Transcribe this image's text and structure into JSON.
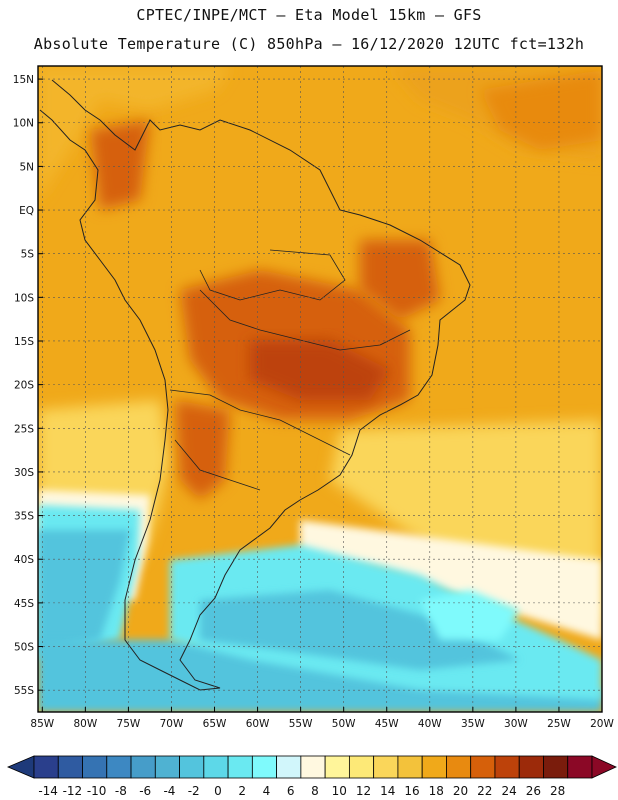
{
  "header": {
    "line1": "CPTEC/INPE/MCT –  Eta Model 15km – GFS",
    "line2": "Absolute Temperature (C) 850hPa – 16/12/2020 12UTC fct=132h"
  },
  "map": {
    "lat_labels": [
      "15N",
      "10N",
      "5N",
      "EQ",
      "5S",
      "10S",
      "15S",
      "20S",
      "25S",
      "30S",
      "35S",
      "40S",
      "45S",
      "50S",
      "55S"
    ],
    "lon_labels": [
      "85W",
      "80W",
      "75W",
      "70W",
      "65W",
      "60W",
      "55W",
      "50W",
      "45W",
      "40W",
      "35W",
      "30W",
      "25W",
      "20W"
    ],
    "lat_values": [
      15,
      10,
      5,
      0,
      -5,
      -10,
      -15,
      -20,
      -25,
      -30,
      -35,
      -40,
      -45,
      -50,
      -55
    ],
    "lon_values": [
      -85,
      -80,
      -75,
      -70,
      -65,
      -60,
      -55,
      -50,
      -45,
      -40,
      -35,
      -30,
      -25,
      -20
    ],
    "extent": {
      "lon_min": -85.5,
      "lon_max": -20,
      "lat_min": -57.5,
      "lat_max": 16.5
    }
  },
  "colorbar": {
    "labels": [
      "-14",
      "-12",
      "-10",
      "-8",
      "-6",
      "-4",
      "-2",
      "0",
      "2",
      "4",
      "6",
      "8",
      "10",
      "12",
      "14",
      "16",
      "18",
      "20",
      "22",
      "24",
      "26",
      "28"
    ],
    "colors": [
      "#2a3f8c",
      "#2f5ba1",
      "#3573b3",
      "#3d88c2",
      "#469dc9",
      "#4fb2d2",
      "#53c4dd",
      "#5dd8e8",
      "#6ae9f1",
      "#7ffafc",
      "#d1f6fb",
      "#fff8e0",
      "#fff59a",
      "#fde977",
      "#fad65a",
      "#f3c23b",
      "#f0a91a",
      "#e88a10",
      "#d6600a",
      "#bd420a",
      "#9c2a0a",
      "#7a1c0c",
      "#8b0826"
    ],
    "low_color": "#1e3a7a",
    "high_color": "#8b0826"
  }
}
